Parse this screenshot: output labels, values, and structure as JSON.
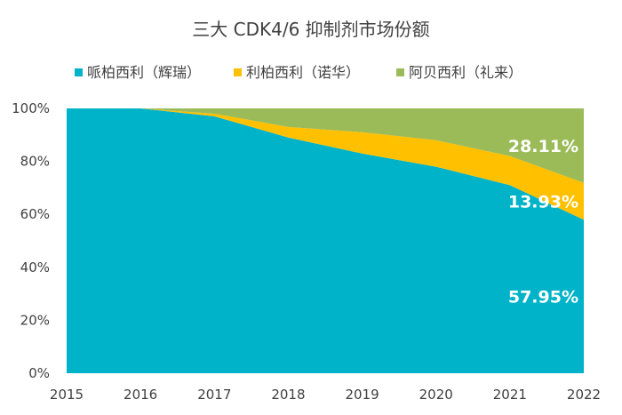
{
  "chart_data": {
    "type": "area",
    "stacked": "percent",
    "title": "三大 CDK4/6 抑制剂市场份额",
    "x": [
      "2015",
      "2016",
      "2017",
      "2018",
      "2019",
      "2020",
      "2021",
      "2022"
    ],
    "ylim": [
      0,
      100
    ],
    "yticks": [
      "0%",
      "20%",
      "40%",
      "60%",
      "80%",
      "100%"
    ],
    "legend_position": "top",
    "series": [
      {
        "name": "哌柏西利（辉瑞）",
        "color": "#00B3C8",
        "values": [
          100,
          100,
          97,
          89,
          83,
          78,
          71,
          57.95
        ]
      },
      {
        "name": "利柏西利（诺华）",
        "color": "#FFC000",
        "values": [
          0,
          0,
          1,
          4,
          8,
          10,
          11,
          13.93
        ]
      },
      {
        "name": "阿贝西利（礼来）",
        "color": "#9BBB59",
        "values": [
          0,
          0,
          2,
          7,
          9,
          12,
          18,
          28.11
        ]
      }
    ],
    "data_labels": [
      "57.95%",
      "13.93%",
      "28.11%"
    ]
  }
}
